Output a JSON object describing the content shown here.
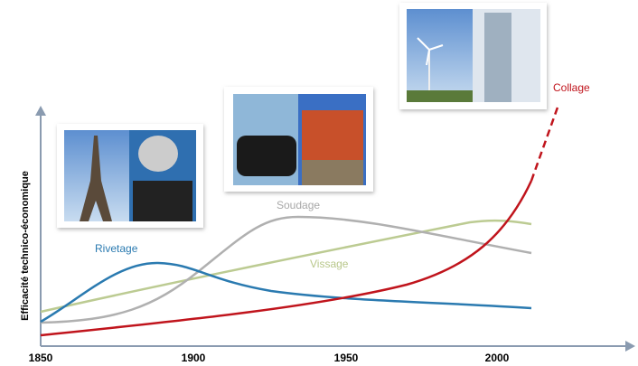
{
  "axis": {
    "y_label": "Efficacité technico-économique",
    "x_ticks": [
      "1850",
      "1900",
      "1950",
      "2000"
    ]
  },
  "curves": [
    {
      "label": "Rivetage"
    },
    {
      "label": "Soudage"
    },
    {
      "label": "Vissage"
    },
    {
      "label": "Collage"
    }
  ]
}
